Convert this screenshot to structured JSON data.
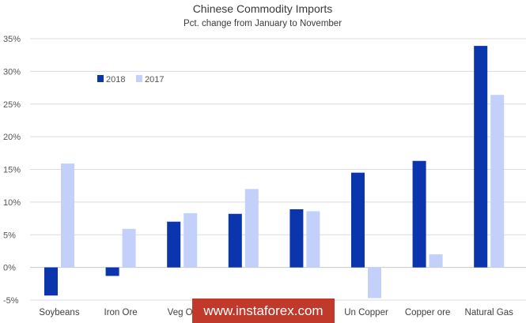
{
  "chart_data": {
    "type": "bar",
    "title": "Chinese Commodity Imports",
    "subtitle": "Pct. change from January  to November",
    "categories": [
      "Soybeans",
      "Iron Ore",
      "Veg Oil",
      "",
      "",
      "Un Copper",
      "Copper ore",
      "Natural Gas"
    ],
    "series": [
      {
        "name": "2018",
        "color": "#0b35ad",
        "values": [
          -4.3,
          -1.3,
          7.0,
          8.2,
          8.9,
          14.5,
          16.3,
          33.9
        ]
      },
      {
        "name": "2017",
        "color": "#c3d1fa",
        "values": [
          15.9,
          5.9,
          8.3,
          12.0,
          8.6,
          -4.7,
          2.0,
          26.4
        ]
      }
    ],
    "ylim": [
      -5,
      35
    ],
    "yticks": [
      "-5%",
      "0%",
      "5%",
      "10%",
      "15%",
      "20%",
      "25%",
      "30%",
      "35%"
    ],
    "ytick_values": [
      -5,
      0,
      5,
      10,
      15,
      20,
      25,
      30,
      35
    ],
    "grid": true,
    "legend_position": "top-left"
  },
  "watermark": {
    "text": "www.instaforex.com",
    "color": "#c0392b"
  }
}
